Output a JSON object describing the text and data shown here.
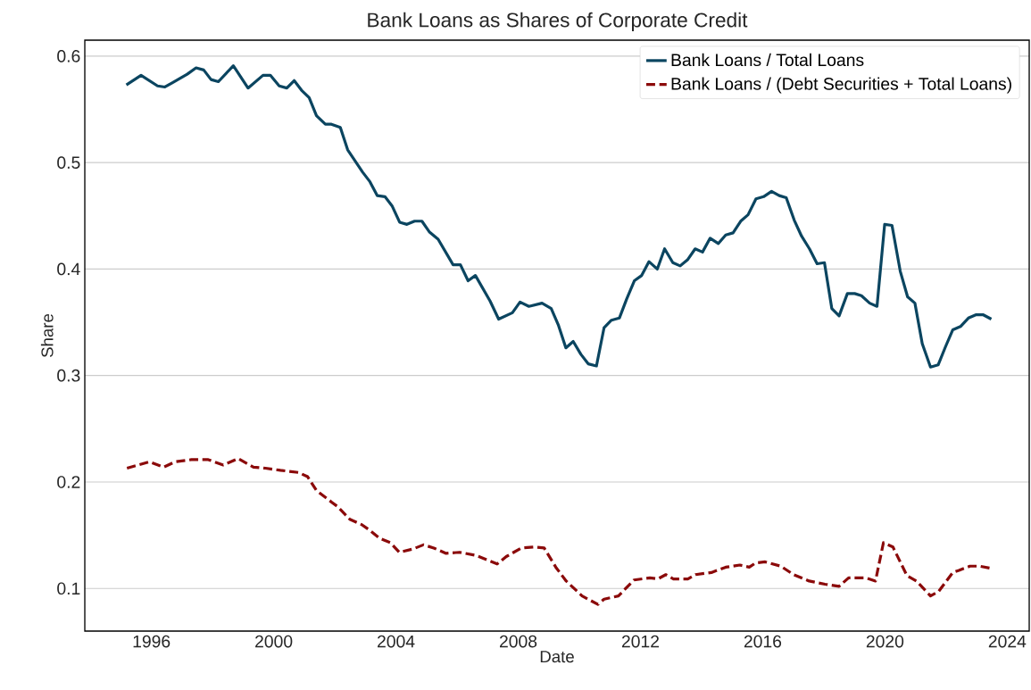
{
  "chart_data": {
    "type": "line",
    "title": "Bank Loans as Shares of Corporate Credit",
    "xlabel": "Date",
    "ylabel": "Share",
    "xlim": [
      1993.82,
      2024.72
    ],
    "ylim": [
      0.06,
      0.615
    ],
    "xticks": [
      1996,
      2000,
      2004,
      2008,
      2012,
      2016,
      2020,
      2024
    ],
    "yticks": [
      0.1,
      0.2,
      0.3,
      0.4,
      0.5,
      0.6
    ],
    "grid": "y",
    "legend": "top right",
    "series": [
      {
        "name": "Bank Loans / Total Loans",
        "color": "#0b4560",
        "line_style": "solid",
        "x": [
          1995.18,
          1995.66,
          1996.2,
          1996.44,
          1996.69,
          1997.17,
          1997.46,
          1997.71,
          1997.95,
          1998.19,
          1998.68,
          1999.16,
          1999.65,
          1999.89,
          2000.18,
          2000.43,
          2000.67,
          2000.91,
          2001.16,
          2001.4,
          2001.69,
          2001.89,
          2002.18,
          2002.42,
          2002.91,
          2003.15,
          2003.39,
          2003.64,
          2003.88,
          2004.12,
          2004.36,
          2004.61,
          2004.85,
          2005.09,
          2005.38,
          2005.87,
          2006.11,
          2006.36,
          2006.6,
          2007.08,
          2007.36,
          2007.81,
          2008.06,
          2008.35,
          2008.78,
          2009.08,
          2009.32,
          2009.56,
          2009.8,
          2010.05,
          2010.29,
          2010.56,
          2010.81,
          2011.05,
          2011.31,
          2011.55,
          2011.8,
          2012.04,
          2012.28,
          2012.55,
          2012.79,
          2013.06,
          2013.3,
          2013.55,
          2013.79,
          2014.03,
          2014.28,
          2014.55,
          2014.79,
          2015.03,
          2015.28,
          2015.52,
          2015.78,
          2016.03,
          2016.29,
          2016.54,
          2016.77,
          2017.03,
          2017.27,
          2017.53,
          2017.78,
          2018.02,
          2018.26,
          2018.5,
          2018.77,
          2019.01,
          2019.23,
          2019.5,
          2019.74,
          2019.99,
          2020.23,
          2020.5,
          2020.74,
          2020.98,
          2021.22,
          2021.49,
          2021.74,
          2021.98,
          2022.22,
          2022.47,
          2022.73,
          2022.97,
          2023.22,
          2023.48
        ],
        "values": [
          0.573,
          0.582,
          0.572,
          0.571,
          0.575,
          0.583,
          0.589,
          0.587,
          0.578,
          0.576,
          0.591,
          0.57,
          0.582,
          0.582,
          0.572,
          0.57,
          0.577,
          0.568,
          0.561,
          0.544,
          0.536,
          0.536,
          0.533,
          0.512,
          0.491,
          0.482,
          0.469,
          0.468,
          0.459,
          0.444,
          0.442,
          0.445,
          0.445,
          0.435,
          0.428,
          0.404,
          0.404,
          0.389,
          0.394,
          0.37,
          0.353,
          0.359,
          0.369,
          0.365,
          0.368,
          0.363,
          0.347,
          0.326,
          0.332,
          0.32,
          0.311,
          0.309,
          0.345,
          0.352,
          0.354,
          0.372,
          0.389,
          0.394,
          0.407,
          0.4,
          0.419,
          0.406,
          0.403,
          0.409,
          0.419,
          0.416,
          0.429,
          0.424,
          0.432,
          0.434,
          0.445,
          0.451,
          0.466,
          0.468,
          0.473,
          0.469,
          0.467,
          0.446,
          0.431,
          0.419,
          0.405,
          0.406,
          0.363,
          0.356,
          0.377,
          0.377,
          0.375,
          0.368,
          0.365,
          0.442,
          0.441,
          0.398,
          0.374,
          0.368,
          0.33,
          0.308,
          0.31,
          0.327,
          0.343,
          0.346,
          0.354,
          0.357,
          0.357,
          0.353
        ]
      },
      {
        "name": "Bank Loans / (Debt Securities + Total Loans)",
        "color": "#8b0a0a",
        "line_style": "dashed",
        "x": [
          1995.2,
          1995.94,
          1996.4,
          1996.78,
          1997.31,
          1997.86,
          1998.35,
          1998.84,
          1999.34,
          1999.73,
          2000.22,
          2000.81,
          2001.11,
          2001.4,
          2001.9,
          2002.09,
          2002.49,
          2002.88,
          2003.13,
          2003.47,
          2003.82,
          2004.11,
          2004.55,
          2004.9,
          2005.24,
          2005.64,
          2006.08,
          2006.62,
          2007.31,
          2007.61,
          2008.1,
          2008.54,
          2008.85,
          2009.23,
          2009.57,
          2010.09,
          2010.61,
          2010.81,
          2011.28,
          2011.79,
          2012.31,
          2012.57,
          2012.83,
          2013.08,
          2013.55,
          2013.8,
          2014.32,
          2014.79,
          2015.25,
          2015.56,
          2015.77,
          2016.08,
          2016.59,
          2017.01,
          2017.52,
          2018.04,
          2018.5,
          2018.81,
          2019.38,
          2019.69,
          2019.95,
          2020.26,
          2020.72,
          2021.03,
          2021.49,
          2021.75,
          2022.22,
          2022.42,
          2022.78,
          2023.09,
          2023.45
        ],
        "values": [
          0.213,
          0.219,
          0.214,
          0.219,
          0.221,
          0.221,
          0.216,
          0.222,
          0.214,
          0.213,
          0.211,
          0.209,
          0.205,
          0.192,
          0.181,
          0.177,
          0.165,
          0.16,
          0.155,
          0.147,
          0.143,
          0.134,
          0.137,
          0.141,
          0.138,
          0.133,
          0.134,
          0.131,
          0.123,
          0.13,
          0.138,
          0.139,
          0.138,
          0.12,
          0.107,
          0.093,
          0.085,
          0.09,
          0.093,
          0.108,
          0.11,
          0.109,
          0.113,
          0.109,
          0.109,
          0.113,
          0.115,
          0.12,
          0.122,
          0.12,
          0.124,
          0.125,
          0.121,
          0.113,
          0.107,
          0.104,
          0.102,
          0.11,
          0.11,
          0.107,
          0.143,
          0.139,
          0.112,
          0.107,
          0.093,
          0.097,
          0.115,
          0.117,
          0.121,
          0.121,
          0.119
        ]
      }
    ]
  }
}
